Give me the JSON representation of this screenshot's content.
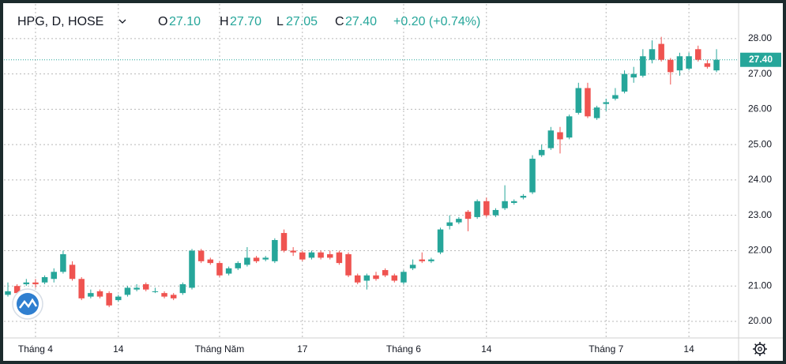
{
  "chart_data": {
    "type": "candlestick",
    "legend": {
      "symbol": "HPG, D, HOSE",
      "fields": [
        {
          "key": "O",
          "value": "27.10"
        },
        {
          "key": "H",
          "value": "27.70"
        },
        {
          "key": "L",
          "value": "27.05"
        },
        {
          "key": "C",
          "value": "27.40"
        }
      ],
      "change": "+0.20 (+0.74%)"
    },
    "up_color": "#26a69a",
    "down_color": "#ef5350",
    "categories": [
      null,
      null,
      null,
      "Tháng 4",
      null,
      null,
      null,
      null,
      null,
      null,
      null,
      null,
      "14",
      null,
      null,
      null,
      null,
      null,
      null,
      null,
      null,
      null,
      null,
      "Tháng Năm",
      null,
      null,
      null,
      null,
      null,
      null,
      null,
      null,
      "17",
      null,
      null,
      null,
      null,
      null,
      null,
      null,
      null,
      null,
      null,
      "Tháng 6",
      null,
      null,
      null,
      null,
      null,
      null,
      null,
      null,
      "14",
      null,
      null,
      null,
      null,
      null,
      null,
      null,
      null,
      null,
      null,
      null,
      null,
      "Tháng 7",
      null,
      null,
      null,
      null,
      null,
      null,
      null,
      null,
      "14",
      null,
      null,
      null
    ],
    "open": [
      20.75,
      21.0,
      21.05,
      21.1,
      21.1,
      21.2,
      21.4,
      21.6,
      21.2,
      20.7,
      20.85,
      20.8,
      20.6,
      20.75,
      20.9,
      21.05,
      20.85,
      20.8,
      20.75,
      20.8,
      20.95,
      22.0,
      21.75,
      21.65,
      21.35,
      21.5,
      21.6,
      21.8,
      21.75,
      21.7,
      22.5,
      22.0,
      21.95,
      21.8,
      21.95,
      21.9,
      21.95,
      21.9,
      21.3,
      21.15,
      21.3,
      21.45,
      21.3,
      21.1,
      21.5,
      21.75,
      21.7,
      21.95,
      22.7,
      22.8,
      23.1,
      22.95,
      23.4,
      23.0,
      23.2,
      23.35,
      23.5,
      23.65,
      24.7,
      24.9,
      25.35,
      25.2,
      25.9,
      26.6,
      25.75,
      26.15,
      26.3,
      26.5,
      26.9,
      26.95,
      27.4,
      27.85,
      27.4,
      27.1,
      27.15,
      27.7,
      27.3,
      27.1
    ],
    "high": [
      21.1,
      21.05,
      21.2,
      21.2,
      21.3,
      21.5,
      22.0,
      21.7,
      21.25,
      20.9,
      20.9,
      20.85,
      20.75,
      21.0,
      21.05,
      21.1,
      20.95,
      20.85,
      20.8,
      21.1,
      22.05,
      22.05,
      21.8,
      21.7,
      21.55,
      21.7,
      22.1,
      21.85,
      21.85,
      22.35,
      22.6,
      22.1,
      22.0,
      22.0,
      22.0,
      22.0,
      22.0,
      21.95,
      21.35,
      21.35,
      21.4,
      21.5,
      21.35,
      21.45,
      21.75,
      21.95,
      21.8,
      22.65,
      23.0,
      22.95,
      23.15,
      23.45,
      23.5,
      23.2,
      23.85,
      23.45,
      23.6,
      24.7,
      25.0,
      25.5,
      25.5,
      25.85,
      26.75,
      26.75,
      26.1,
      26.3,
      26.6,
      27.1,
      27.2,
      27.7,
      27.95,
      28.05,
      27.45,
      27.6,
      27.6,
      27.8,
      27.4,
      27.7
    ],
    "low": [
      20.7,
      20.75,
      21.0,
      20.95,
      21.05,
      21.1,
      21.35,
      21.15,
      20.6,
      20.65,
      20.65,
      20.4,
      20.55,
      20.7,
      20.85,
      20.85,
      20.8,
      20.65,
      20.6,
      20.75,
      20.9,
      21.65,
      21.6,
      21.25,
      21.3,
      21.45,
      21.55,
      21.65,
      21.7,
      21.65,
      21.95,
      21.85,
      21.7,
      21.75,
      21.75,
      21.75,
      21.6,
      21.25,
      21.05,
      20.9,
      21.15,
      21.25,
      21.1,
      21.05,
      21.45,
      21.65,
      21.65,
      21.9,
      22.6,
      22.75,
      22.55,
      22.9,
      22.95,
      22.95,
      23.15,
      23.3,
      23.45,
      23.6,
      24.65,
      24.85,
      24.75,
      25.15,
      25.85,
      25.75,
      25.7,
      25.95,
      26.25,
      26.45,
      26.75,
      26.9,
      27.3,
      27.35,
      26.7,
      26.95,
      27.1,
      27.35,
      27.15,
      27.05
    ],
    "close": [
      20.85,
      20.8,
      21.1,
      21.05,
      21.25,
      21.4,
      21.9,
      21.2,
      20.65,
      20.8,
      20.7,
      20.45,
      20.7,
      20.95,
      20.95,
      20.9,
      20.85,
      20.7,
      20.65,
      21.05,
      22.0,
      21.7,
      21.65,
      21.3,
      21.5,
      21.65,
      21.8,
      21.7,
      21.8,
      22.3,
      22.0,
      21.95,
      21.75,
      21.95,
      21.8,
      21.8,
      21.65,
      21.3,
      21.1,
      21.3,
      21.2,
      21.3,
      21.15,
      21.4,
      21.6,
      21.7,
      21.75,
      22.6,
      22.8,
      22.9,
      22.9,
      23.4,
      23.0,
      23.15,
      23.4,
      23.4,
      23.55,
      24.6,
      24.85,
      25.4,
      25.15,
      25.8,
      26.6,
      25.8,
      26.05,
      26.2,
      26.4,
      27.0,
      27.0,
      27.5,
      27.7,
      27.4,
      27.05,
      27.5,
      27.5,
      27.4,
      27.2,
      27.4
    ],
    "ylim": [
      19.53,
      28.98
    ],
    "yticks": [
      {
        "value": 20,
        "label": "20.00"
      },
      {
        "value": 21,
        "label": "21.00"
      },
      {
        "value": 22,
        "label": "22.00"
      },
      {
        "value": 23,
        "label": "23.00"
      },
      {
        "value": 24,
        "label": "24.00"
      },
      {
        "value": 25,
        "label": "25.00"
      },
      {
        "value": 26,
        "label": "26.00"
      },
      {
        "value": 27,
        "label": "27.00"
      },
      {
        "value": 28,
        "label": "28.00"
      }
    ],
    "last_price": {
      "value": 27.4,
      "label": "27.40"
    },
    "grid": true
  }
}
